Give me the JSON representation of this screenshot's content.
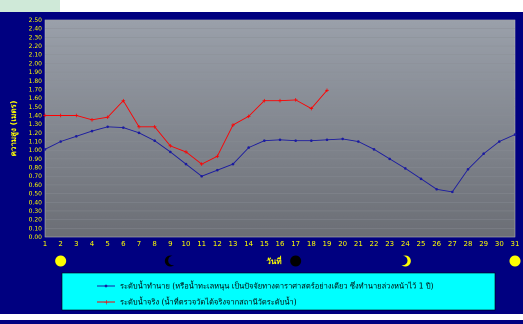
{
  "chart_data": {
    "type": "line",
    "xlabel": "วันที่",
    "ylabel": "ความสูง (เมตร)",
    "xlim": [
      1,
      31
    ],
    "ylim": [
      0,
      2.5
    ],
    "x": [
      1,
      2,
      3,
      4,
      5,
      6,
      7,
      8,
      9,
      10,
      11,
      12,
      13,
      14,
      15,
      16,
      17,
      18,
      19,
      20,
      21,
      22,
      23,
      24,
      25,
      26,
      27,
      28,
      29,
      30,
      31
    ],
    "y_ticks": [
      "0.00",
      "0.10",
      "0.20",
      "0.30",
      "0.40",
      "0.50",
      "0.60",
      "0.70",
      "0.80",
      "0.90",
      "1.00",
      "1.10",
      "1.20",
      "1.30",
      "1.40",
      "1.50",
      "1.60",
      "1.70",
      "1.80",
      "1.90",
      "2.00",
      "2.10",
      "2.20",
      "2.30",
      "2.40",
      "2.50"
    ],
    "series": [
      {
        "name": "ระดับน้ำทำนาย (หรือน้ำทะเลหนุน เป็นปัจจัยทางดาราศาสตร์อย่างเดียว ซึ่งทำนายล่วงหน้าไว้ 1 ปี)",
        "color": "#1a1aa0",
        "x": [
          1,
          2,
          3,
          4,
          5,
          6,
          7,
          8,
          9,
          10,
          11,
          12,
          13,
          14,
          15,
          16,
          17,
          18,
          19,
          20,
          21,
          22,
          23,
          24,
          25,
          26,
          27,
          28,
          29,
          30,
          31
        ],
        "values": [
          1.01,
          1.1,
          1.16,
          1.22,
          1.27,
          1.26,
          1.2,
          1.11,
          0.98,
          0.84,
          0.7,
          0.77,
          0.84,
          1.03,
          1.11,
          1.12,
          1.11,
          1.11,
          1.12,
          1.13,
          1.1,
          1.01,
          0.9,
          0.79,
          0.67,
          0.55,
          0.52,
          0.78,
          0.96,
          1.1,
          1.18
        ]
      },
      {
        "name": "ระดับน้ำจริง (น้ำที่ตรวจวัดได้จริงจากสถานีวัดระดับน้ำ)",
        "color": "#ff0000",
        "x": [
          1,
          2,
          3,
          4,
          5,
          6,
          7,
          8,
          9,
          10,
          11,
          12,
          13,
          14,
          15,
          16,
          17,
          18,
          19
        ],
        "values": [
          1.4,
          1.4,
          1.4,
          1.35,
          1.38,
          1.57,
          1.27,
          1.27,
          1.05,
          0.98,
          0.84,
          0.93,
          1.29,
          1.39,
          1.57,
          1.57,
          1.58,
          1.48,
          1.69
        ]
      }
    ],
    "moon_phases": [
      {
        "day": 2,
        "phase": "full-moon"
      },
      {
        "day": 9,
        "phase": "last-quarter-moon"
      },
      {
        "day": 17,
        "phase": "new-moon"
      },
      {
        "day": 24,
        "phase": "first-quarter-moon"
      },
      {
        "day": 31,
        "phase": "full-moon"
      }
    ],
    "grid": true,
    "legend": "bottom"
  }
}
